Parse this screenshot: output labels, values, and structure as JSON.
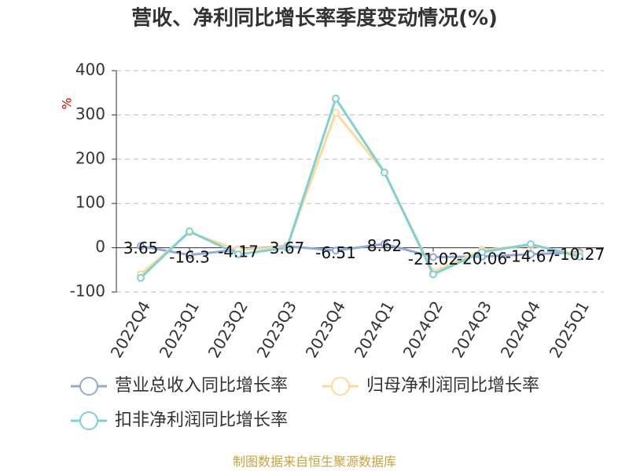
{
  "chart_data": {
    "type": "line",
    "title": "营收、净利同比增长率季度变动情况(%)",
    "y_label": "%",
    "source": "制图数据来自恒生聚源数据库",
    "categories": [
      "2022Q4",
      "2023Q1",
      "2023Q2",
      "2023Q3",
      "2023Q4",
      "2024Q1",
      "2024Q2",
      "2024Q3",
      "2024Q4",
      "2025Q1"
    ],
    "series": [
      {
        "name": "营业总收入同比增长率",
        "color": "#8faadc",
        "values": [
          3.65,
          -16.3,
          -4.17,
          3.67,
          -6.51,
          8.62,
          -21.02,
          -20.06,
          -14.67,
          -10.27
        ]
      },
      {
        "name": "归母净利润同比增长率",
        "color": "#fdd99a",
        "values": [
          -60,
          35,
          -5,
          2,
          305,
          170,
          -55,
          -5,
          5,
          -15
        ]
      },
      {
        "name": "扣非净利润同比增长率",
        "color": "#7fd1d4",
        "values": [
          -68,
          37,
          -15,
          0,
          337,
          170,
          -60,
          -10,
          8,
          -20
        ]
      }
    ],
    "ylim": [
      -100,
      400
    ],
    "yticks": [
      -100,
      0,
      100,
      200,
      300,
      400
    ],
    "grid": true
  }
}
